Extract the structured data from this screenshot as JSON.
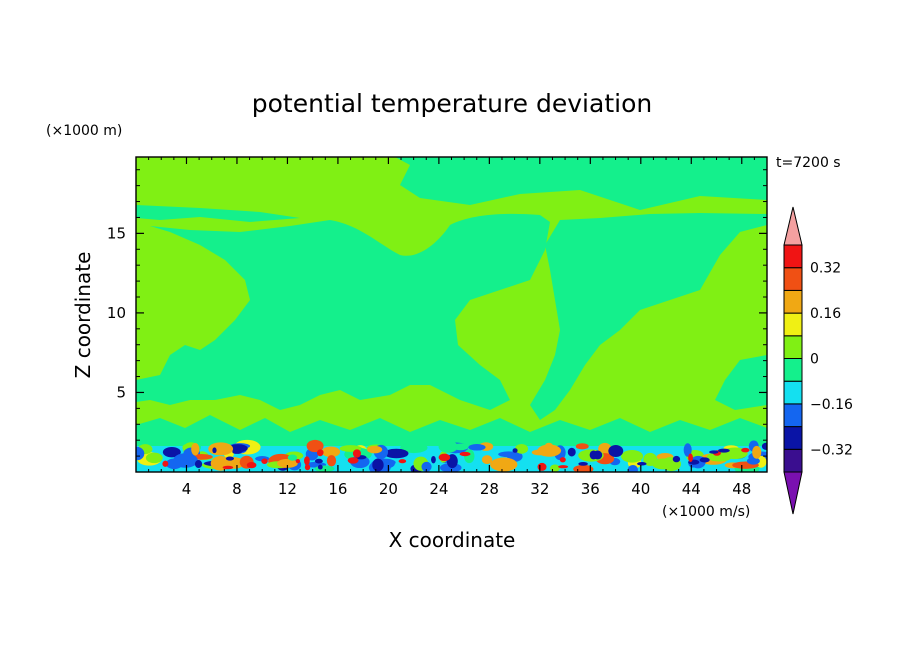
{
  "chart_data": {
    "type": "heatmap",
    "title": "potential temperature deviation",
    "xlabel": "X coordinate",
    "ylabel": "Z coordinate",
    "x_unit": "(×1000 m/s)",
    "y_unit": "(×1000 m)",
    "time_label": "t=7200 s",
    "xlim": [
      0,
      50
    ],
    "ylim": [
      0,
      19.8
    ],
    "xticks": [
      4,
      8,
      12,
      16,
      20,
      24,
      28,
      32,
      36,
      40,
      44,
      48
    ],
    "yticks": [
      5,
      10,
      15
    ],
    "colorbar": {
      "levels": [
        -0.4,
        -0.32,
        -0.24,
        -0.16,
        -0.08,
        0,
        0.08,
        0.16,
        0.24,
        0.32,
        0.4
      ],
      "labels": [
        {
          "value": 0.32,
          "text": "0.32"
        },
        {
          "value": 0.16,
          "text": "0.16"
        },
        {
          "value": 0,
          "text": "0"
        },
        {
          "value": -0.16,
          "text": "−0.16"
        },
        {
          "value": -0.32,
          "text": "−0.32"
        }
      ],
      "colors": [
        "#3a0e8f",
        "#0a14a6",
        "#1466f0",
        "#14e0f0",
        "#14f08c",
        "#80f014",
        "#f0f014",
        "#f0a814",
        "#f05014",
        "#f01414"
      ],
      "under_color": "#7a10b0",
      "over_color": "#f4a0a0"
    },
    "background_color": "#80f014",
    "negative_small_color": "#14f08c"
  }
}
